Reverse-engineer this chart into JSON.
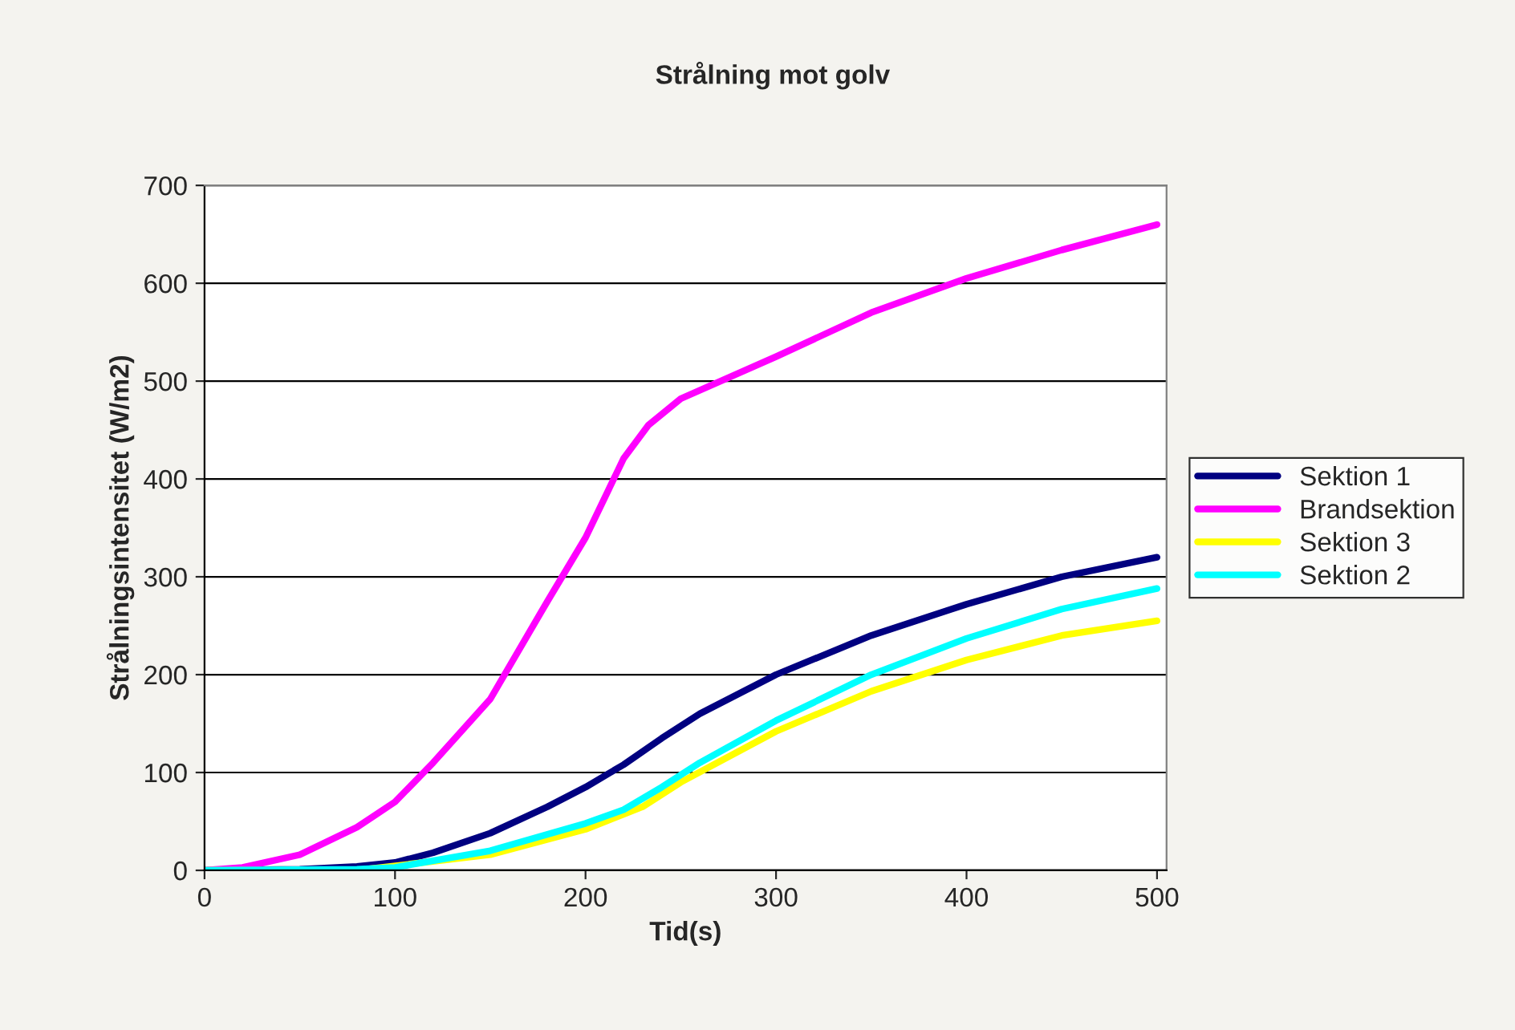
{
  "chart_data": {
    "type": "line",
    "title": "Strålning mot golv",
    "xlabel": "Tid(s)",
    "ylabel": "Strålningsintensitet (W/m2)",
    "xlim": [
      0,
      505
    ],
    "xticks": [
      0,
      100,
      200,
      300,
      400,
      500
    ],
    "ylim": [
      0,
      700
    ],
    "yticks": [
      0,
      100,
      200,
      300,
      400,
      500,
      600,
      700
    ],
    "grid": "y",
    "legend": "right",
    "marker": "none",
    "line_style": "solid",
    "series": [
      {
        "name": "Sektion 1",
        "color": "#000080",
        "x": [
          0,
          50,
          80,
          100,
          120,
          150,
          180,
          200,
          220,
          240,
          260,
          300,
          350,
          400,
          450,
          500
        ],
        "values": [
          0,
          1,
          4,
          8,
          18,
          38,
          65,
          85,
          108,
          135,
          160,
          200,
          240,
          272,
          300,
          320
        ]
      },
      {
        "name": "Brandsektion",
        "color": "#ff00ff",
        "x": [
          0,
          20,
          50,
          80,
          100,
          120,
          150,
          180,
          200,
          220,
          233,
          250,
          300,
          350,
          400,
          450,
          500
        ],
        "values": [
          0,
          3,
          16,
          44,
          70,
          110,
          175,
          275,
          340,
          421,
          455,
          482,
          525,
          570,
          605,
          634,
          660
        ]
      },
      {
        "name": "Sektion 3",
        "color": "#ffff00",
        "x": [
          0,
          80,
          150,
          200,
          230,
          250,
          300,
          350,
          400,
          450,
          500
        ],
        "values": [
          0,
          0,
          16,
          42,
          65,
          90,
          142,
          183,
          215,
          240,
          255
        ]
      },
      {
        "name": "Sektion 2",
        "color": "#00ffff",
        "x": [
          0,
          80,
          100,
          150,
          200,
          220,
          240,
          260,
          300,
          350,
          400,
          450,
          500
        ],
        "values": [
          0,
          1,
          3,
          20,
          48,
          62,
          85,
          110,
          153,
          200,
          237,
          267,
          288
        ]
      }
    ]
  }
}
